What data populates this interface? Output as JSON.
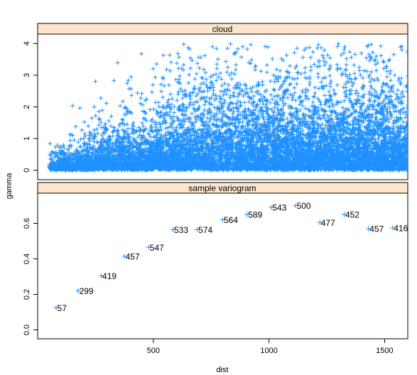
{
  "chart_data": {
    "type": "scatter",
    "xlabel": "dist",
    "ylabel": "gamma",
    "xlim": [
      0,
      1600
    ],
    "x_ticks": [
      "500",
      "1000",
      "1500"
    ],
    "colors": {
      "points": "#1e90ff",
      "strip_bg": "#ffe5cc"
    },
    "grid": false,
    "panels": [
      {
        "strip": "cloud",
        "ylim": [
          -0.3,
          4.3
        ],
        "y_ticks": [
          "0",
          "1",
          "2",
          "3",
          "4"
        ],
        "cloud": true,
        "n_points": 9100
      },
      {
        "strip": "sample variogram",
        "ylim": [
          -0.05,
          0.77
        ],
        "y_ticks": [
          "0.0",
          "0.2",
          "0.4",
          "0.6"
        ],
        "points": [
          {
            "x": 80,
            "y": 0.125,
            "np": "57"
          },
          {
            "x": 175,
            "y": 0.22,
            "np": "299"
          },
          {
            "x": 275,
            "y": 0.305,
            "np": "419"
          },
          {
            "x": 375,
            "y": 0.415,
            "np": "457"
          },
          {
            "x": 480,
            "y": 0.465,
            "np": "547"
          },
          {
            "x": 585,
            "y": 0.565,
            "np": "533"
          },
          {
            "x": 690,
            "y": 0.565,
            "np": "574"
          },
          {
            "x": 800,
            "y": 0.62,
            "np": "564"
          },
          {
            "x": 905,
            "y": 0.65,
            "np": "589"
          },
          {
            "x": 1010,
            "y": 0.69,
            "np": "543"
          },
          {
            "x": 1115,
            "y": 0.7,
            "np": "500"
          },
          {
            "x": 1220,
            "y": 0.605,
            "np": "477"
          },
          {
            "x": 1325,
            "y": 0.65,
            "np": "452"
          },
          {
            "x": 1430,
            "y": 0.57,
            "np": "457"
          },
          {
            "x": 1535,
            "y": 0.575,
            "np": "416"
          }
        ]
      }
    ]
  }
}
